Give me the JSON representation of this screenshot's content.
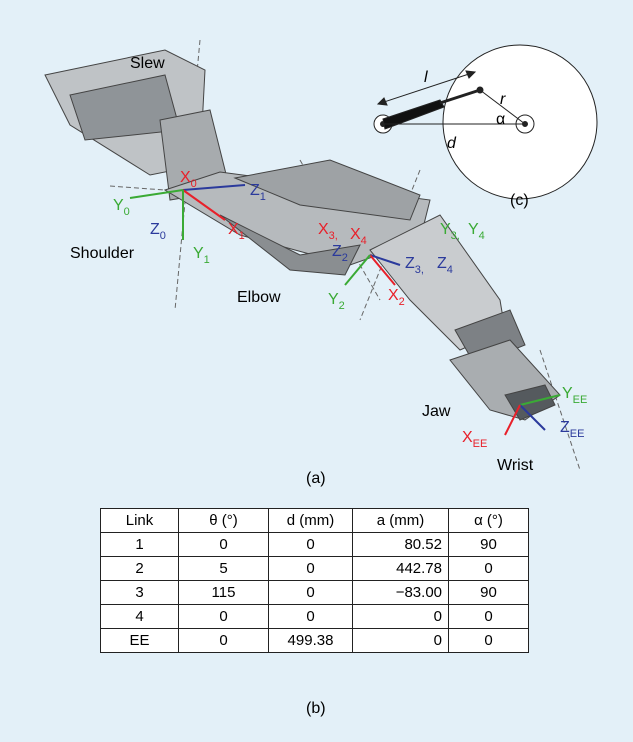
{
  "figure_a": {
    "joints": [
      "Slew",
      "Shoulder",
      "Elbow",
      "Jaw",
      "Wrist"
    ],
    "frames": [
      {
        "axis": "X",
        "sub": "0",
        "color": "#e8202a"
      },
      {
        "axis": "Y",
        "sub": "0",
        "color": "#3aaa35"
      },
      {
        "axis": "Z",
        "sub": "1",
        "color": "#2b3a9c"
      },
      {
        "axis": "X",
        "sub": "1",
        "color": "#e8202a"
      },
      {
        "axis": "Z",
        "sub": "0",
        "color": "#2b3a9c"
      },
      {
        "axis": "Y",
        "sub": "1",
        "color": "#3aaa35"
      },
      {
        "axis": "X",
        "sub": "3,",
        "color": "#e8202a"
      },
      {
        "axis": "X",
        "sub": "4",
        "color": "#e8202a"
      },
      {
        "axis": "Y",
        "sub": "3,",
        "color": "#3aaa35"
      },
      {
        "axis": "Y",
        "sub": "4",
        "color": "#3aaa35"
      },
      {
        "axis": "Z",
        "sub": "2",
        "color": "#2b3a9c"
      },
      {
        "axis": "Z",
        "sub": "3,",
        "color": "#2b3a9c"
      },
      {
        "axis": "Z",
        "sub": "4",
        "color": "#2b3a9c"
      },
      {
        "axis": "Y",
        "sub": "2",
        "color": "#3aaa35"
      },
      {
        "axis": "X",
        "sub": "2",
        "color": "#e8202a"
      },
      {
        "axis": "Y",
        "sub": "EE",
        "color": "#3aaa35"
      },
      {
        "axis": "Z",
        "sub": "EE",
        "color": "#2b3a9c"
      },
      {
        "axis": "X",
        "sub": "EE",
        "color": "#e8202a"
      }
    ],
    "caption": "(a)"
  },
  "figure_c": {
    "labels": {
      "l": "l",
      "r": "r",
      "alpha": "α",
      "d": "d"
    },
    "caption": "(c)"
  },
  "table": {
    "header": [
      "Link",
      "θ (°)",
      "d (mm)",
      "a (mm)",
      "α (°)"
    ],
    "rows": [
      [
        "1",
        "0",
        "0",
        "80.52",
        "90"
      ],
      [
        "2",
        "5",
        "0",
        "442.78",
        "0"
      ],
      [
        "3",
        "115",
        "0",
        "−83.00",
        "90"
      ],
      [
        "4",
        "0",
        "0",
        "0",
        "0"
      ],
      [
        "EE",
        "0",
        "499.38",
        "0",
        "0"
      ]
    ],
    "caption": "(b)"
  }
}
